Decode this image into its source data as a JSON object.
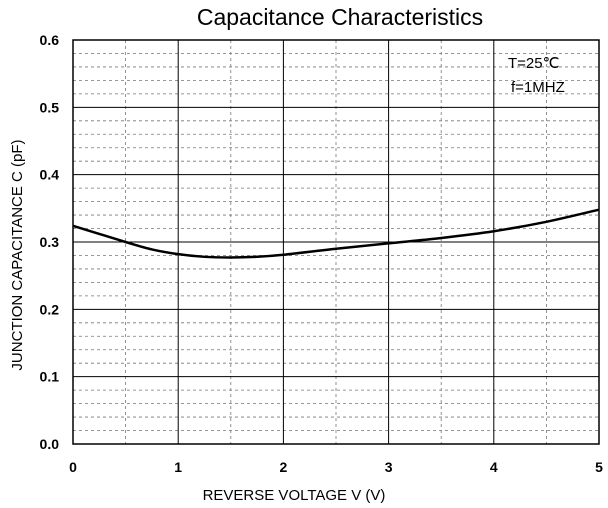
{
  "chart_data": {
    "type": "line",
    "title": "Capacitance Characteristics",
    "xlabel": "REVERSE VOLTAGE V (V)",
    "ylabel": "JUNCTION CAPACITANCE C (pF)",
    "xlim": [
      0,
      5
    ],
    "ylim": [
      0,
      0.6
    ],
    "xticks": [
      0,
      1,
      2,
      3,
      4,
      5
    ],
    "xtick_labels": [
      "0",
      "1",
      "2",
      "3",
      "4",
      "5"
    ],
    "yticks": [
      0.0,
      0.1,
      0.2,
      0.3,
      0.4,
      0.5,
      0.6
    ],
    "ytick_labels": [
      "0.0",
      "0.1",
      "0.2",
      "0.3",
      "0.4",
      "0.5",
      "0.6"
    ],
    "grid": true,
    "annotations": [
      "T=25℃",
      "f=1MHZ"
    ],
    "series": [
      {
        "name": "C",
        "x": [
          0,
          0.25,
          0.5,
          0.75,
          1.0,
          1.25,
          1.5,
          1.75,
          2.0,
          2.5,
          3.0,
          3.5,
          4.0,
          4.5,
          5.0
        ],
        "values": [
          0.324,
          0.312,
          0.3,
          0.289,
          0.282,
          0.278,
          0.277,
          0.278,
          0.281,
          0.29,
          0.298,
          0.306,
          0.316,
          0.33,
          0.348
        ]
      }
    ]
  }
}
